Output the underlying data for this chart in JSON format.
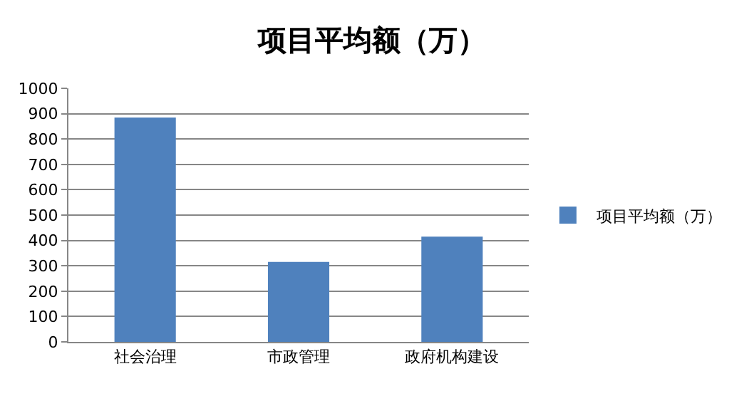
{
  "chart_data": {
    "type": "bar",
    "title": "项目平均额（万）",
    "categories": [
      "社会治理",
      "市政管理",
      "政府机构建设"
    ],
    "series": [
      {
        "name": "项目平均额（万）",
        "color": "#4f81bd",
        "values": [
          885,
          315,
          415
        ]
      }
    ],
    "ylim": [
      0,
      1000
    ],
    "yticks": [
      0,
      100,
      200,
      300,
      400,
      500,
      600,
      700,
      800,
      900,
      1000
    ],
    "grid": "y",
    "legend": "right"
  }
}
